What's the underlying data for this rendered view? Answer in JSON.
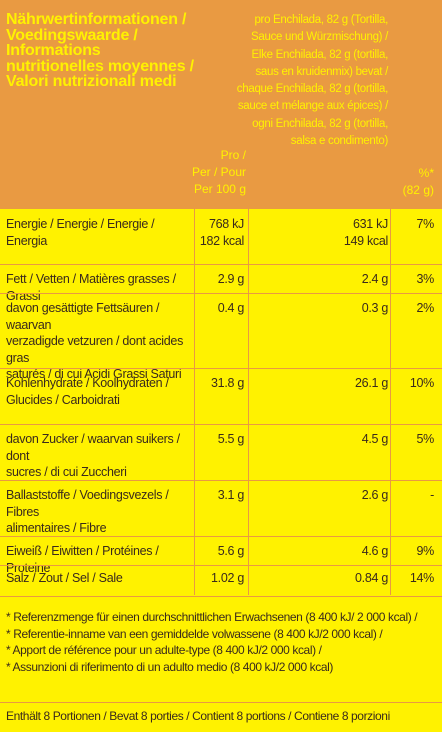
{
  "header": {
    "title_lines": [
      "Nährwertinformationen /",
      "Voedingswaarde /",
      "Informations",
      "nutritionelles moyennes /",
      "Valori nutrizionali medi"
    ],
    "serving_lines": [
      "pro Enchilada, 82 g (Tortilla,",
      "Sauce und Würzmischung) /",
      "Elke Enchilada, 82 g (tortilla,",
      "saus en kruidenmix) bevat /",
      "chaque Enchilada, 82 g (tortilla,",
      "sauce et mélange aux épices) /",
      "ogni Enchilada, 82 g (tortilla,",
      "salsa e condimento)"
    ],
    "per100_lines": [
      "Pro /",
      "Per / Pour",
      "Per 100 g"
    ],
    "pct_lines": [
      "%*",
      "(82 g)"
    ]
  },
  "rows": [
    {
      "name": [
        "Energie / Energie / Energie /",
        "Energia"
      ],
      "per100": [
        "768 kJ",
        "182 kcal"
      ],
      "serving": [
        "631 kJ",
        "149 kcal"
      ],
      "pct": "7%"
    },
    {
      "name": [
        "Fett / Vetten / Matières grasses / Grassi"
      ],
      "per100": [
        "2.9 g"
      ],
      "serving": [
        "2.4 g"
      ],
      "pct": "3%"
    },
    {
      "name": [
        "davon gesättigte Fettsäuren / waarvan",
        "verzadigde vetzuren / dont acides gras",
        "saturés / di cui Acidi Grassi Saturi"
      ],
      "per100": [
        "0.4 g"
      ],
      "serving": [
        "0.3 g"
      ],
      "pct": "2%"
    },
    {
      "name": [
        "Kohlenhydrate / Koolhydraten /",
        "Glucides / Carboidrati"
      ],
      "per100": [
        "31.8 g"
      ],
      "serving": [
        "26.1 g"
      ],
      "pct": "10%"
    },
    {
      "name": [
        "davon Zucker / waarvan suikers / dont",
        "sucres / di cui Zuccheri"
      ],
      "per100": [
        "5.5 g"
      ],
      "serving": [
        "4.5 g"
      ],
      "pct": "5%"
    },
    {
      "name": [
        "Ballaststoffe / Voedingsvezels / Fibres",
        "alimentaires / Fibre"
      ],
      "per100": [
        "3.1 g"
      ],
      "serving": [
        "2.6 g"
      ],
      "pct": "-"
    },
    {
      "name": [
        "Eiweiß / Eiwitten / Protéines / Proteine"
      ],
      "per100": [
        "5.6 g"
      ],
      "serving": [
        "4.6 g"
      ],
      "pct": "9%"
    },
    {
      "name": [
        "Salz / Zout / Sel / Sale"
      ],
      "per100": [
        "1.02 g"
      ],
      "serving": [
        "0.84 g"
      ],
      "pct": "14%"
    }
  ],
  "footnotes": [
    "* Referenzmenge für einen durchschnittlichen Erwachsenen (8 400 kJ/ 2 000 kcal) /",
    "* Referentie-inname van een gemiddelde volwassene (8 400 kJ/2 000 kcal) /",
    "* Apport de référence pour un adulte-type (8 400 kJ/2 000 kcal) /",
    "* Assunzioni di riferimento di un adulto medio (8 400 kJ/2 000 kcal)"
  ],
  "portions": "Enthält 8 Portionen / Bevat 8 porties / Contient 8 portions / Contiene 8 porzioni",
  "colors": {
    "background": "#fff200",
    "header": "#e99a42",
    "text": "#3a2a1c"
  }
}
